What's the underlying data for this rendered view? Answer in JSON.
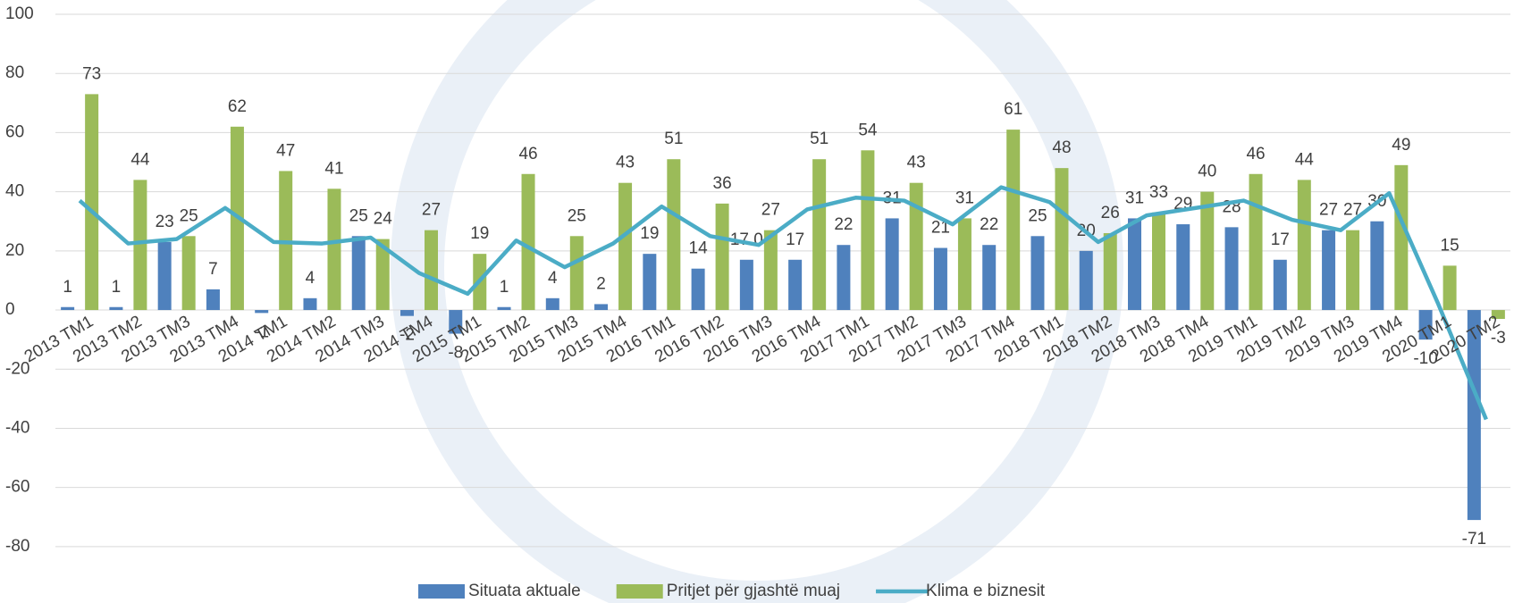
{
  "chart_data": {
    "type": "bar",
    "categories": [
      "2013 TM1",
      "2013 TM2",
      "2013 TM3",
      "2013 TM4",
      "2014 TM1",
      "2014 TM2",
      "2014 TM3",
      "2014 TM4",
      "2015 TM1",
      "2015 TM2",
      "2015 TM3",
      "2015 TM4",
      "2016 TM1",
      "2016 TM2",
      "2016 TM3",
      "2016 TM4",
      "2017 TM1",
      "2017 TM2",
      "2017 TM3",
      "2017 TM4",
      "2018 TM1",
      "2018 TM2",
      "2018 TM3",
      "2018 TM4",
      "2019 TM1",
      "2019 TM2",
      "2019 TM3",
      "2019 TM4",
      "2020 TM1",
      "2020 TM2"
    ],
    "series": [
      {
        "name": "Situata aktuale",
        "color": "#4f81bd",
        "type": "bar",
        "values": [
          1,
          1,
          23,
          7,
          -1,
          4,
          25,
          -2,
          -8,
          1,
          4,
          2,
          19,
          14,
          17,
          17,
          22,
          31,
          21,
          22,
          25,
          20,
          31,
          29,
          28,
          17,
          27,
          30,
          -10,
          -71
        ],
        "value_labels": [
          "1",
          "1",
          "23",
          "7",
          "-1",
          "4",
          "25",
          "-2",
          "-8",
          "1",
          "4",
          "2",
          "19",
          "14",
          "17.0",
          "17",
          "22",
          "31",
          "21",
          "22",
          "25",
          "20",
          "31",
          "29",
          "28",
          "17",
          "27",
          "30",
          "-10",
          "-71"
        ]
      },
      {
        "name": "Pritjet për gjashtë muaj",
        "color": "#9bbb59",
        "type": "bar",
        "values": [
          73,
          44,
          25,
          62,
          47,
          41,
          24,
          27,
          19,
          46,
          25,
          43,
          51,
          36,
          27,
          51,
          54,
          43,
          31,
          61,
          48,
          26,
          33,
          40,
          46,
          44,
          27,
          49,
          15,
          -3
        ]
      },
      {
        "name": "Klima e biznesit",
        "color": "#4bacc6",
        "type": "line",
        "values": [
          37,
          22.5,
          24,
          34.5,
          23,
          22.5,
          24.5,
          12.5,
          5.5,
          23.5,
          14.5,
          22.5,
          35,
          25,
          22,
          34,
          38,
          37,
          29,
          41.5,
          36.5,
          23,
          32,
          34.5,
          37,
          30.5,
          27,
          39.5,
          2.5,
          -37
        ]
      }
    ],
    "ylim": [
      -90,
      100
    ],
    "yticks": [
      -80,
      -60,
      -40,
      -20,
      0,
      20,
      40,
      60,
      80,
      100
    ],
    "grid": true,
    "legend": "bottom"
  }
}
